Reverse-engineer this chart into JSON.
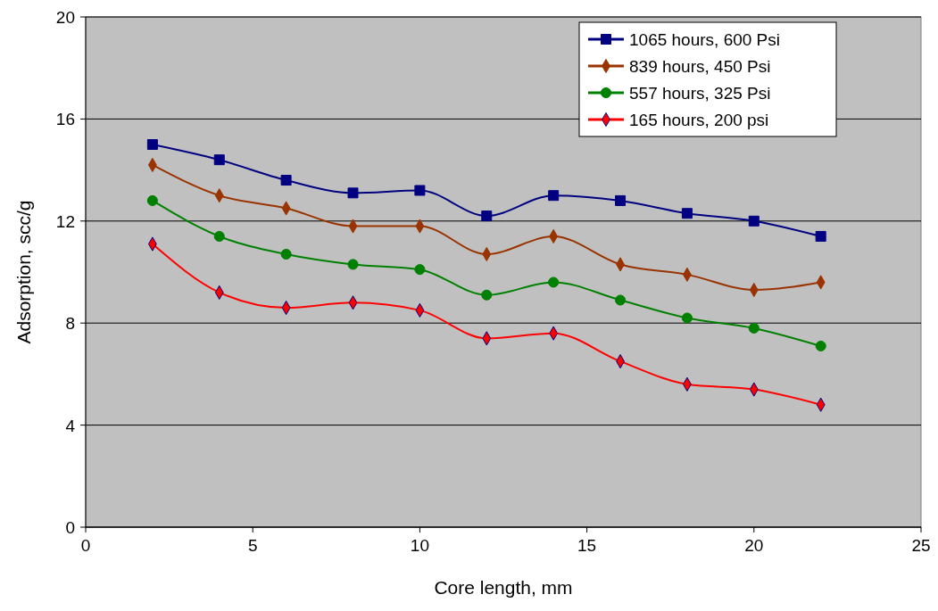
{
  "chart_data": {
    "type": "line",
    "xlabel": "Core length, mm",
    "ylabel": "Adsorption, scc/g",
    "x": [
      2,
      4,
      6,
      8,
      10,
      12,
      14,
      16,
      18,
      20,
      22
    ],
    "xlim": [
      0,
      25
    ],
    "xticks": [
      0,
      5,
      10,
      15,
      20,
      25
    ],
    "ylim": [
      0,
      20
    ],
    "yticks": [
      0,
      4,
      8,
      12,
      16,
      20
    ],
    "grid": "y",
    "legend": "top right",
    "series": [
      {
        "name": "1065 hours, 600 Psi",
        "color": "#000080",
        "marker": "square",
        "values": [
          15.0,
          14.4,
          13.6,
          13.1,
          13.2,
          12.2,
          13.0,
          12.8,
          12.3,
          12.0,
          11.4
        ]
      },
      {
        "name": "839 hours, 450 Psi",
        "color": "#993300",
        "marker": "diamond",
        "values": [
          14.2,
          13.0,
          12.5,
          11.8,
          11.8,
          10.7,
          11.4,
          10.3,
          9.9,
          9.3,
          9.6
        ]
      },
      {
        "name": "557 hours, 325 Psi",
        "color": "#008000",
        "marker": "circle",
        "values": [
          12.8,
          11.4,
          10.7,
          10.3,
          10.1,
          9.1,
          9.6,
          8.9,
          8.2,
          7.8,
          7.1
        ]
      },
      {
        "name": "165 hours, 200 psi",
        "color": "#ff0000",
        "marker": "diamond",
        "values": [
          11.1,
          9.2,
          8.6,
          8.8,
          8.5,
          7.4,
          7.6,
          6.5,
          5.6,
          5.4,
          4.8
        ]
      }
    ]
  }
}
